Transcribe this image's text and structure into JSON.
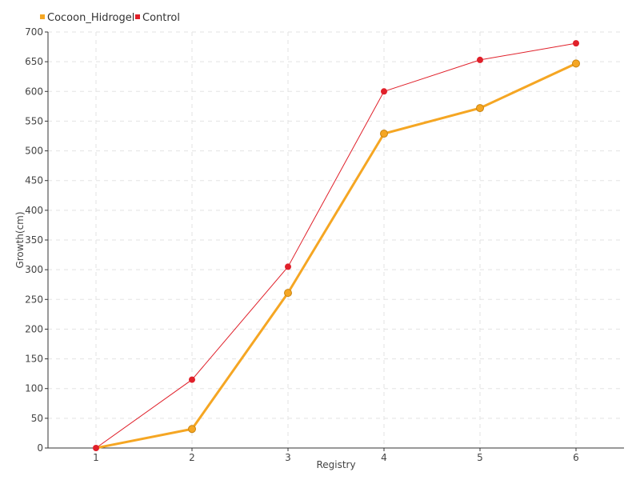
{
  "chart_data": {
    "type": "line",
    "xlabel": "Registry",
    "ylabel": "Growth(cm)",
    "categories": [
      "1",
      "2",
      "3",
      "4",
      "5",
      "6"
    ],
    "ylim": [
      0,
      700
    ],
    "yticks": [
      0,
      50,
      100,
      150,
      200,
      250,
      300,
      350,
      400,
      450,
      500,
      550,
      600,
      650,
      700
    ],
    "grid": true,
    "legend_position": "top-left",
    "series": [
      {
        "name": "Cocoon_Hidrogel",
        "color": "#F5A623",
        "values": [
          0,
          32,
          261,
          529,
          572,
          647
        ]
      },
      {
        "name": "Control",
        "color": "#E0202A",
        "values": [
          0,
          115,
          305,
          600,
          653,
          681
        ]
      }
    ]
  }
}
